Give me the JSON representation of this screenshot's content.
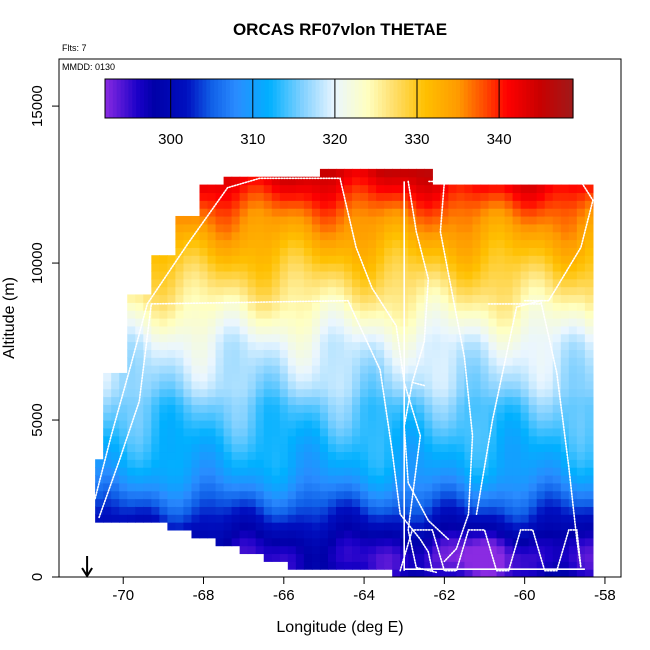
{
  "chart_data": {
    "type": "heatmap",
    "title": "ORCAS RF07vlon THETAE",
    "xlabel": "Longitude (deg E)",
    "ylabel": "Altitude (m)",
    "xlim": [
      -71.6,
      -57.6
    ],
    "ylim": [
      0,
      16500
    ],
    "xticks": [
      -70,
      -68,
      -66,
      -64,
      -62,
      -60,
      -58
    ],
    "yticks": [
      0,
      5000,
      10000,
      15000
    ],
    "annotations": {
      "flights": "Flts: 7",
      "date": "MMDD: 0130"
    },
    "colorbar": {
      "min": 292,
      "max": 349,
      "ticks": [
        300,
        310,
        320,
        330,
        340
      ],
      "stops": [
        [
          292,
          "#8a2be2"
        ],
        [
          296,
          "#1a00c8"
        ],
        [
          298,
          "#0000a8"
        ],
        [
          302,
          "#0010c0"
        ],
        [
          305,
          "#1060e8"
        ],
        [
          308,
          "#2a8cff"
        ],
        [
          312,
          "#00b0ff"
        ],
        [
          316,
          "#80d0ff"
        ],
        [
          320,
          "#eaf6ff"
        ],
        [
          324,
          "#ffffc0"
        ],
        [
          327,
          "#ffe070"
        ],
        [
          331,
          "#ffc000"
        ],
        [
          335,
          "#ff9a00"
        ],
        [
          338,
          "#ff5000"
        ],
        [
          341,
          "#ff0000"
        ],
        [
          345,
          "#c80000"
        ],
        [
          349,
          "#a01a1a"
        ]
      ]
    },
    "altitude_profile_theta_e": [
      [
        0,
        298
      ],
      [
        500,
        296
      ],
      [
        1000,
        297
      ],
      [
        1500,
        300
      ],
      [
        2000,
        303
      ],
      [
        2500,
        306
      ],
      [
        3000,
        309
      ],
      [
        3500,
        311
      ],
      [
        4000,
        312
      ],
      [
        4500,
        313
      ],
      [
        5000,
        314
      ],
      [
        5500,
        315
      ],
      [
        6000,
        317
      ],
      [
        6500,
        318
      ],
      [
        7000,
        319
      ],
      [
        7500,
        320
      ],
      [
        8000,
        322
      ],
      [
        8500,
        324
      ],
      [
        9000,
        326
      ],
      [
        9500,
        328
      ],
      [
        10000,
        330
      ],
      [
        10500,
        332
      ],
      [
        11000,
        334
      ],
      [
        11500,
        336
      ],
      [
        12000,
        339
      ],
      [
        12500,
        342
      ],
      [
        13000,
        345
      ]
    ],
    "data_envelope_deg_m": [
      [
        -70.8,
        1800
      ],
      [
        -70.8,
        3700
      ],
      [
        -70.4,
        3700
      ],
      [
        -70.4,
        6500
      ],
      [
        -69.8,
        6500
      ],
      [
        -69.8,
        9000
      ],
      [
        -69.2,
        9000
      ],
      [
        -69.2,
        10200
      ],
      [
        -68.6,
        10200
      ],
      [
        -68.6,
        11600
      ],
      [
        -68.0,
        11600
      ],
      [
        -68.0,
        12400
      ],
      [
        -67.4,
        12400
      ],
      [
        -67.4,
        12800
      ],
      [
        -65.0,
        12800
      ],
      [
        -65.0,
        13000
      ],
      [
        -62.2,
        13000
      ],
      [
        -62.2,
        12600
      ],
      [
        -58.3,
        12600
      ],
      [
        -58.3,
        1600
      ],
      [
        -58.2,
        0
      ],
      [
        -63.3,
        0
      ],
      [
        -63.3,
        200
      ],
      [
        -65.6,
        300
      ],
      [
        -67.0,
        800
      ],
      [
        -69.0,
        1700
      ],
      [
        -70.8,
        1800
      ]
    ],
    "flight_tracks": [
      [
        [
          -70.7,
          2500
        ],
        [
          -70.3,
          4500
        ],
        [
          -69.8,
          6800
        ],
        [
          -69.4,
          8700
        ],
        [
          -68.4,
          10600
        ],
        [
          -67.4,
          12400
        ],
        [
          -66.6,
          12700
        ],
        [
          -64.6,
          12700
        ],
        [
          -64.2,
          10500
        ],
        [
          -63.8,
          9200
        ],
        [
          -63.2,
          8000
        ],
        [
          -63.0,
          6200
        ],
        [
          -62.6,
          4500
        ],
        [
          -62.9,
          1500
        ],
        [
          -62.7,
          300
        ],
        [
          -62.2,
          150
        ]
      ],
      [
        [
          -70.6,
          1900
        ],
        [
          -70.1,
          3700
        ],
        [
          -69.6,
          5600
        ],
        [
          -69.3,
          8700
        ],
        [
          -64.4,
          8800
        ],
        [
          -63.6,
          6600
        ],
        [
          -63.3,
          4000
        ],
        [
          -63.1,
          2000
        ],
        [
          -62.6,
          1200
        ],
        [
          -62.4,
          800
        ],
        [
          -62.3,
          200
        ]
      ],
      [
        [
          -63.1,
          200
        ],
        [
          -62.8,
          1500
        ],
        [
          -62.3,
          1500
        ],
        [
          -62.0,
          200
        ],
        [
          -61.7,
          200
        ],
        [
          -61.4,
          1500
        ],
        [
          -61.0,
          1500
        ],
        [
          -60.7,
          200
        ],
        [
          -60.4,
          200
        ],
        [
          -60.1,
          1500
        ],
        [
          -59.8,
          1500
        ],
        [
          -59.5,
          200
        ],
        [
          -59.2,
          200
        ],
        [
          -58.9,
          1500
        ],
        [
          -58.7,
          1500
        ],
        [
          -58.6,
          300
        ]
      ],
      [
        [
          -62.0,
          12600
        ],
        [
          -62.1,
          11000
        ],
        [
          -61.8,
          9000
        ],
        [
          -61.5,
          7000
        ],
        [
          -61.3,
          4500
        ],
        [
          -61.4,
          2000
        ],
        [
          -61.7,
          900
        ],
        [
          -62.0,
          500
        ]
      ],
      [
        [
          -60.0,
          8800
        ],
        [
          -59.4,
          8800
        ],
        [
          -58.6,
          10500
        ],
        [
          -58.3,
          12000
        ],
        [
          -58.6,
          12600
        ],
        [
          -62.4,
          12600
        ]
      ],
      [
        [
          -62.9,
          12600
        ],
        [
          -62.7,
          11000
        ],
        [
          -62.4,
          9500
        ],
        [
          -62.5,
          7500
        ],
        [
          -62.8,
          6200
        ],
        [
          -63.0,
          4800
        ],
        [
          -62.9,
          3000
        ],
        [
          -62.4,
          1800
        ],
        [
          -61.9,
          1200
        ]
      ],
      [
        [
          -61.2,
          2000
        ],
        [
          -60.8,
          5000
        ],
        [
          -60.2,
          8600
        ],
        [
          -59.6,
          8800
        ],
        [
          -59.2,
          6500
        ],
        [
          -58.9,
          3500
        ],
        [
          -58.7,
          1200
        ],
        [
          -58.6,
          300
        ]
      ],
      [
        [
          -62.8,
          6200
        ],
        [
          -62.5,
          6100
        ]
      ],
      [
        [
          -60.9,
          8700
        ],
        [
          -59.6,
          8700
        ]
      ]
    ],
    "solid_tracks": [
      [
        [
          -63.0,
          12600
        ],
        [
          -63.0,
          200
        ]
      ],
      [
        [
          -63.0,
          250
        ],
        [
          -58.5,
          250
        ]
      ]
    ],
    "arrow_longitude": -70.9
  }
}
